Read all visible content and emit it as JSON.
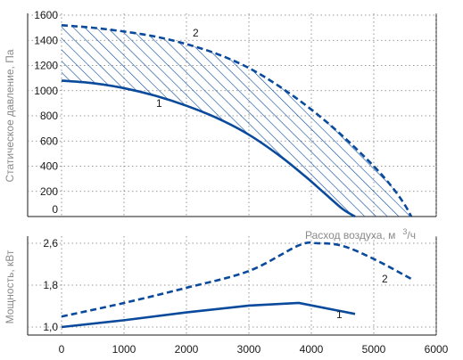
{
  "chart_data": [
    {
      "id": "pressure",
      "type": "line",
      "ylabel": "Статическое давление, Па",
      "xlim": [
        0,
        6000
      ],
      "ylim": [
        0,
        1600
      ],
      "y_ticks": [
        0,
        200,
        400,
        600,
        800,
        1000,
        1200,
        1400,
        1600
      ],
      "grid": true,
      "hatched_region_between": [
        "1",
        "2"
      ],
      "series": [
        {
          "name": "1",
          "style": "solid",
          "color": "#0a4a9c",
          "x": [
            0,
            500,
            1000,
            1500,
            2000,
            2500,
            3000,
            3500,
            3900,
            4200,
            4500,
            4700
          ],
          "y": [
            1080,
            1060,
            1020,
            960,
            880,
            780,
            650,
            480,
            320,
            190,
            60,
            0
          ]
        },
        {
          "name": "2",
          "style": "dashed",
          "color": "#0a4a9c",
          "x": [
            0,
            500,
            1000,
            1500,
            2000,
            2500,
            3000,
            3500,
            4000,
            4500,
            5000,
            5300,
            5500,
            5600
          ],
          "y": [
            1520,
            1500,
            1470,
            1430,
            1370,
            1290,
            1180,
            1030,
            850,
            640,
            400,
            230,
            90,
            0
          ]
        }
      ]
    },
    {
      "id": "power",
      "type": "line",
      "ylabel": "Мощность, кВт",
      "xlabel": "Расход воздуха, м",
      "xlabel_unit_sup": "3",
      "xlabel_unit_tail": "/ч",
      "xlim": [
        0,
        6000
      ],
      "ylim": [
        1.0,
        2.6
      ],
      "y_ticks": [
        "1,0",
        "1,8",
        "2,6"
      ],
      "y_tick_values": [
        1.0,
        1.8,
        2.6
      ],
      "x_ticks": [
        0,
        1000,
        2000,
        3000,
        4000,
        5000,
        6000
      ],
      "grid": true,
      "series": [
        {
          "name": "1",
          "style": "solid",
          "color": "#0a4a9c",
          "x": [
            0,
            1000,
            2000,
            3000,
            3800,
            4700
          ],
          "y": [
            1.0,
            1.13,
            1.28,
            1.41,
            1.46,
            1.25
          ]
        },
        {
          "name": "2",
          "style": "dashed",
          "color": "#0a4a9c",
          "x": [
            0,
            1000,
            2000,
            3000,
            3800,
            4100,
            4500,
            5000,
            5600
          ],
          "y": [
            1.2,
            1.46,
            1.75,
            2.07,
            2.56,
            2.6,
            2.55,
            2.3,
            1.92
          ]
        }
      ]
    }
  ]
}
